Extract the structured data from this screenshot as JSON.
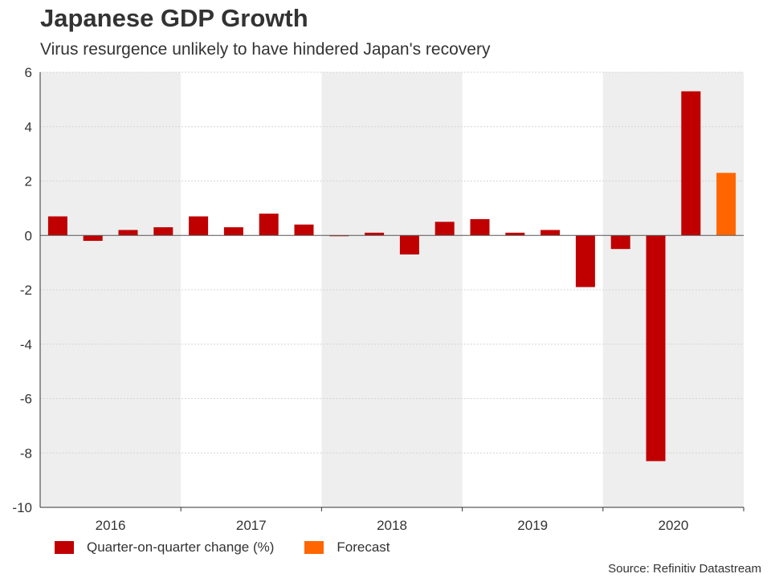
{
  "chart_data": {
    "type": "bar",
    "title": "Japanese GDP Growth",
    "subtitle": "Virus resurgence unlikely to have hindered Japan's recovery",
    "categories": [
      "2016 Q1",
      "2016 Q2",
      "2016 Q3",
      "2016 Q4",
      "2017 Q1",
      "2017 Q2",
      "2017 Q3",
      "2017 Q4",
      "2018 Q1",
      "2018 Q2",
      "2018 Q3",
      "2018 Q4",
      "2019 Q1",
      "2019 Q2",
      "2019 Q3",
      "2019 Q4",
      "2020 Q1",
      "2020 Q2",
      "2020 Q3",
      "2020 Q4"
    ],
    "year_labels": [
      "2016",
      "2017",
      "2018",
      "2019",
      "2020"
    ],
    "series": [
      {
        "name": "Quarter-on-quarter change (%)",
        "color": "#c00000",
        "values": [
          0.7,
          -0.2,
          0.2,
          0.3,
          0.7,
          0.3,
          0.8,
          0.4,
          0.0,
          0.1,
          -0.7,
          0.5,
          0.6,
          0.1,
          0.2,
          -1.9,
          -0.5,
          -8.3,
          5.3,
          null
        ]
      },
      {
        "name": "Forecast",
        "color": "#ff6600",
        "values": [
          null,
          null,
          null,
          null,
          null,
          null,
          null,
          null,
          null,
          null,
          null,
          null,
          null,
          null,
          null,
          null,
          null,
          null,
          null,
          2.3
        ]
      }
    ],
    "y_ticks": [
      "6",
      "4",
      "2",
      "0",
      "-2",
      "-4",
      "-6",
      "-8",
      "-10"
    ],
    "ylim": [
      -10,
      6
    ],
    "xlabel": "",
    "ylabel": ""
  },
  "legend": {
    "items": [
      {
        "label": "Quarter-on-quarter change (%)",
        "color": "#c00000"
      },
      {
        "label": "Forecast",
        "color": "#ff6600"
      }
    ]
  },
  "source": "Source: Refinitiv Datastream"
}
